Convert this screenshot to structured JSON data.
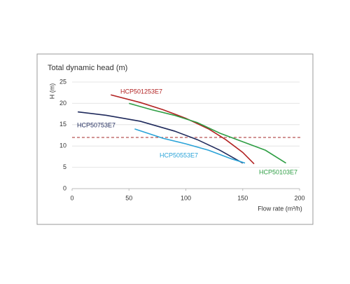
{
  "chart_data": {
    "type": "line",
    "title": "Total dynamic head (m)",
    "y_label": "H (m)",
    "x_label": "Flow rate (m³/h)",
    "xlim": [
      0,
      200
    ],
    "xticks": [
      0,
      50,
      100,
      150,
      200
    ],
    "ylim": [
      0,
      25
    ],
    "yticks": [
      0,
      5,
      10,
      15,
      20,
      25
    ],
    "grid": true,
    "reference_line": {
      "value": 12,
      "color": "#a52a2a"
    },
    "series": [
      {
        "name": "HCP501253E7",
        "color": "#b22222",
        "x": [
          34,
          60,
          80,
          100,
          120,
          135,
          150,
          160
        ],
        "values": [
          22,
          20.2,
          18.5,
          16.5,
          14,
          11.5,
          8.5,
          5.8
        ]
      },
      {
        "name": "HCP50753E7",
        "color": "#1f2a5c",
        "x": [
          5,
          30,
          60,
          90,
          110,
          130,
          150
        ],
        "values": [
          18,
          17.2,
          15.8,
          13.5,
          11.5,
          9,
          6
        ]
      },
      {
        "name": "HCP50553E7",
        "color": "#2aa3d8",
        "x": [
          55,
          80,
          100,
          120,
          140,
          152
        ],
        "values": [
          14,
          11.8,
          10.5,
          9,
          7,
          6
        ]
      },
      {
        "name": "HCP50103E7",
        "color": "#2e9e44",
        "x": [
          50,
          70,
          90,
          110,
          130,
          150,
          170,
          188
        ],
        "values": [
          20,
          18.5,
          17.2,
          15.5,
          13,
          11,
          9,
          6
        ]
      }
    ]
  }
}
